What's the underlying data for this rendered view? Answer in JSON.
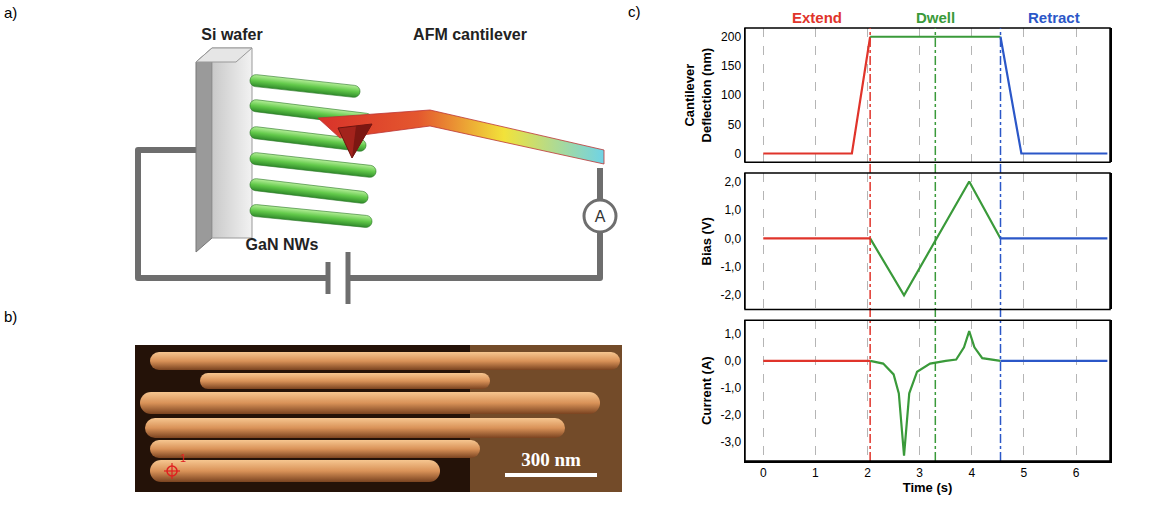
{
  "panels": {
    "a": "a)",
    "b": "b)",
    "c": "c)"
  },
  "diagram": {
    "wafer": "Si wafer",
    "cantilever": "AFM cantilever",
    "nanowires": "GaN NWs",
    "ammeter": "A"
  },
  "image": {
    "marker": "1",
    "scale_bar": "300 nm"
  },
  "chart_data": [
    {
      "type": "line",
      "y_label": "Cantilever Deflection (nm)",
      "xlim": [
        -0.35,
        6.65
      ],
      "xticks": [
        0,
        1,
        2,
        3,
        4,
        5,
        6
      ],
      "ylim": [
        -15,
        215
      ],
      "yticks": [
        0,
        50,
        100,
        150,
        200
      ],
      "grid": "x",
      "tick_labels": "y",
      "phase_lines": [
        {
          "x": 2.05,
          "color": "#e0342b"
        },
        {
          "x": 3.3,
          "color": "#3a9a3a"
        },
        {
          "x": 4.55,
          "color": "#2b57c8"
        }
      ],
      "series": [
        {
          "name": "Extend",
          "color": "#e0342b",
          "x": [
            0,
            1.7,
            2.05
          ],
          "values": [
            0,
            0,
            200
          ]
        },
        {
          "name": "Dwell",
          "color": "#3a9a3a",
          "x": [
            2.05,
            4.55
          ],
          "values": [
            200,
            200
          ]
        },
        {
          "name": "Retract",
          "color": "#2b57c8",
          "x": [
            4.55,
            4.95,
            6.6
          ],
          "values": [
            200,
            0,
            0
          ]
        }
      ]
    },
    {
      "type": "line",
      "y_label": "Bias (V)",
      "xlim": [
        -0.35,
        6.65
      ],
      "xticks": [
        0,
        1,
        2,
        3,
        4,
        5,
        6
      ],
      "ylim": [
        -2.5,
        2.3
      ],
      "yticks": [
        {
          "value": 2,
          "label": "2,0"
        },
        {
          "value": 1,
          "label": "1,0"
        },
        {
          "value": 0,
          "label": "0,0"
        },
        {
          "value": -1,
          "label": "-1,0"
        },
        {
          "value": -2,
          "label": "-2,0"
        }
      ],
      "grid": "x",
      "tick_labels": "y",
      "series": [
        {
          "color": "#e0342b",
          "x": [
            0,
            2.05
          ],
          "values": [
            0,
            0
          ]
        },
        {
          "color": "#3a9a3a",
          "x": [
            2.05,
            2.7,
            3.95,
            4.55
          ],
          "values": [
            0,
            -2,
            2,
            0
          ]
        },
        {
          "color": "#2b57c8",
          "x": [
            4.55,
            6.6
          ],
          "values": [
            0,
            0
          ]
        }
      ]
    },
    {
      "type": "line",
      "y_label": "Current (A)",
      "x_label": "Time (s)",
      "xlim": [
        -0.35,
        6.65
      ],
      "xticks": [
        0,
        1,
        2,
        3,
        4,
        5,
        6
      ],
      "ylim": [
        -3.7,
        1.5
      ],
      "yticks": [
        {
          "value": 1,
          "label": "1,0"
        },
        {
          "value": 0,
          "label": "0,0"
        },
        {
          "value": -1,
          "label": "-1,0"
        },
        {
          "value": -2,
          "label": "-2,0"
        },
        {
          "value": -3,
          "label": "-3,0"
        }
      ],
      "grid": "x",
      "series": [
        {
          "color": "#e0342b",
          "x": [
            0,
            2.05
          ],
          "values": [
            0,
            0
          ]
        },
        {
          "color": "#3a9a3a",
          "x": [
            2.05,
            2.3,
            2.5,
            2.6,
            2.7,
            2.8,
            2.95,
            3.2,
            3.5,
            3.7,
            3.85,
            3.95,
            4.05,
            4.2,
            4.55
          ],
          "values": [
            0,
            -0.1,
            -0.5,
            -1.2,
            -3.5,
            -1.2,
            -0.4,
            -0.1,
            0,
            0.05,
            0.5,
            1.1,
            0.5,
            0.1,
            0
          ]
        },
        {
          "color": "#2b57c8",
          "x": [
            4.55,
            6.6
          ],
          "values": [
            0,
            0
          ]
        }
      ]
    }
  ]
}
